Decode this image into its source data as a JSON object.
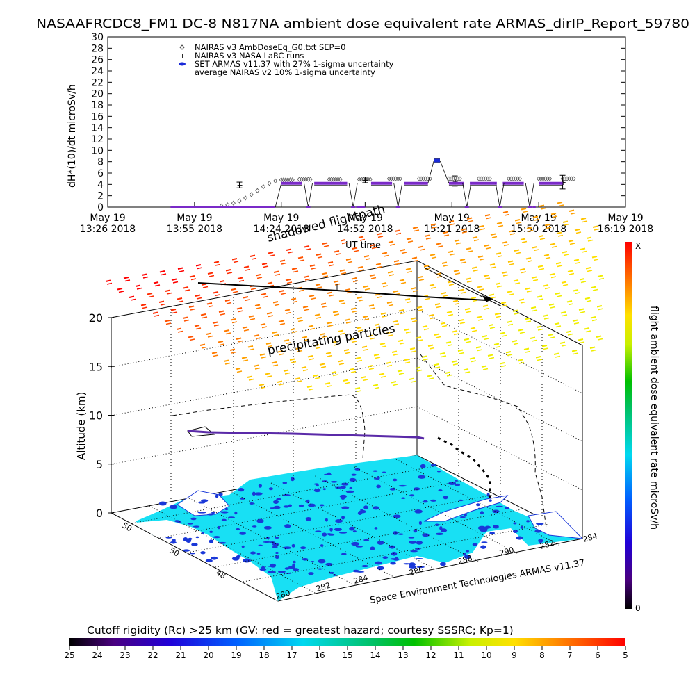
{
  "header": {
    "title": "NASAAFRCDC8_FM1 DC-8    N817NA ambient dose equivalent rate ARMAS_dirIP_Report_59780"
  },
  "chart_data": [
    {
      "type": "scatter",
      "ylabel": "dH*(10)/dt microSv/h",
      "xlabel": "UT time",
      "ylim": [
        0,
        30
      ],
      "y_ticks": [
        0,
        2,
        4,
        6,
        8,
        10,
        12,
        14,
        16,
        18,
        20,
        22,
        24,
        26,
        28,
        30
      ],
      "xlim": [
        "2018-05-19 13:26",
        "2018-05-19 16:19"
      ],
      "x_ticks": [
        {
          "time": "2018-05-19 13:26",
          "line1": "May 19",
          "line2": "13:26 2018"
        },
        {
          "time": "2018-05-19 13:55",
          "line1": "May 19",
          "line2": "13:55 2018"
        },
        {
          "time": "2018-05-19 14:24",
          "line1": "May 19",
          "line2": "14:24 2018"
        },
        {
          "time": "2018-05-19 14:52",
          "line1": "May 19",
          "line2": "14:52 2018"
        },
        {
          "time": "2018-05-19 15:21",
          "line1": "May 19",
          "line2": "15:21 2018"
        },
        {
          "time": "2018-05-19 15:50",
          "line1": "May 19",
          "line2": "15:50 2018"
        },
        {
          "time": "2018-05-19 16:19",
          "line1": "May 19",
          "line2": "16:19 2018"
        }
      ],
      "legend": [
        {
          "marker": "diamond",
          "label": "NAIRAS v3 AmbDoseEq_G0.txt SEP=0"
        },
        {
          "marker": "plus",
          "label": "NAIRAS v3 NASA LaRC runs"
        },
        {
          "marker": "dot",
          "color": "#1a2ad8",
          "label": "SET ARMAS v11.37 with 27% 1-sigma uncertainty"
        },
        {
          "marker": "none",
          "label": "average NAIRAS v2 10% 1-sigma uncertainty"
        }
      ],
      "series": [
        {
          "name": "NAIRAS v3 AmbDoseEq_G0.txt SEP=0",
          "marker": "diamond",
          "color": "#555555",
          "points": [
            [
              "2018-05-19 14:04",
              0.2
            ],
            [
              "2018-05-19 14:06",
              0.4
            ],
            [
              "2018-05-19 14:08",
              0.7
            ],
            [
              "2018-05-19 14:10",
              1.1
            ],
            [
              "2018-05-19 14:12",
              1.6
            ],
            [
              "2018-05-19 14:14",
              2.2
            ],
            [
              "2018-05-19 14:16",
              2.9
            ],
            [
              "2018-05-19 14:18",
              3.6
            ],
            [
              "2018-05-19 14:20",
              4.2
            ],
            [
              "2018-05-19 14:22",
              4.6
            ],
            [
              "2018-05-19 14:24",
              4.8
            ],
            [
              "2018-05-19 14:30",
              4.9
            ],
            [
              "2018-05-19 14:40",
              4.9
            ],
            [
              "2018-05-19 14:50",
              4.9
            ],
            [
              "2018-05-19 15:00",
              5.0
            ],
            [
              "2018-05-19 15:10",
              5.0
            ],
            [
              "2018-05-19 15:20",
              5.0
            ],
            [
              "2018-05-19 15:30",
              5.0
            ],
            [
              "2018-05-19 15:40",
              5.0
            ],
            [
              "2018-05-19 15:50",
              5.0
            ],
            [
              "2018-05-19 15:58",
              5.0
            ]
          ]
        },
        {
          "name": "NAIRAS v3 NASA LaRC runs",
          "marker": "plus",
          "color": "#000000",
          "points": [
            [
              "2018-05-19 14:10",
              3.9
            ],
            [
              "2018-05-19 14:52",
              4.8
            ],
            [
              "2018-05-19 15:22",
              4.6
            ],
            [
              "2018-05-19 15:58",
              4.4
            ]
          ],
          "error": [
            0.5,
            0.5,
            0.9,
            1.2
          ]
        },
        {
          "name": "SET ARMAS v11.37 with 27% 1-sigma uncertainty",
          "marker": "dot",
          "color": "#7a2ac8",
          "segments": [
            [
              [
                "2018-05-19 13:47",
                0
              ],
              [
                "2018-05-19 14:22",
                0
              ]
            ],
            [
              [
                "2018-05-19 14:24",
                4.2
              ],
              [
                "2018-05-19 14:31",
                4.2
              ]
            ],
            [
              [
                "2018-05-19 14:35",
                4.2
              ],
              [
                "2018-05-19 14:46",
                4.2
              ]
            ],
            [
              [
                "2018-05-19 14:49",
                0
              ],
              [
                "2018-05-19 14:52",
                0
              ]
            ],
            [
              [
                "2018-05-19 14:54",
                4.2
              ],
              [
                "2018-05-19 15:01",
                4.2
              ]
            ],
            [
              [
                "2018-05-19 15:05",
                4.2
              ],
              [
                "2018-05-19 15:13",
                4.2
              ]
            ],
            [
              [
                "2018-05-19 15:15",
                8.2
              ],
              [
                "2018-05-19 15:17",
                8.2
              ]
            ],
            [
              [
                "2018-05-19 15:20",
                4.2
              ],
              [
                "2018-05-19 15:25",
                4.2
              ]
            ],
            [
              [
                "2018-05-19 15:27",
                4.2
              ],
              [
                "2018-05-19 15:36",
                4.2
              ]
            ],
            [
              [
                "2018-05-19 15:38",
                4.2
              ],
              [
                "2018-05-19 15:45",
                4.2
              ]
            ],
            [
              [
                "2018-05-19 15:48",
                0
              ],
              [
                "2018-05-19 15:49",
                0
              ]
            ],
            [
              [
                "2018-05-19 15:50",
                4.2
              ],
              [
                "2018-05-19 15:58",
                4.2
              ]
            ]
          ],
          "dips_to_zero": [
            "2018-05-19 14:33",
            "2018-05-19 14:48",
            "2018-05-19 15:03",
            "2018-05-19 15:26",
            "2018-05-19 15:37",
            "2018-05-19 15:47"
          ]
        }
      ]
    },
    {
      "type": "3d-scatter",
      "zlabel": "Altitude (km)",
      "z_ticks": [
        0,
        5,
        10,
        15,
        20
      ],
      "lon_ticks": [
        "280",
        "282",
        "284",
        "286",
        "288",
        "290",
        "282",
        "284"
      ],
      "lat_ticks": [
        "50",
        "50",
        "48"
      ],
      "annotations": [
        "shadowed flightpath",
        "precipitating particles",
        "Space Environment Technologies ARMAS v11.37"
      ],
      "map_colors": {
        "ocean": "#ffffff",
        "land": "#18e0f4",
        "lakes": "#1a38d8"
      },
      "flight_altitude_km": 7.5
    }
  ],
  "colorbar_right": {
    "label": "flight ambient dose equivalent rate microSv/h",
    "max_label": "X",
    "min_label": "0"
  },
  "colorbar_bottom": {
    "title": "Cutoff rigidity (Rc) >25 km (GV: red = greatest hazard; courtesy SSSRC; Kp=1)",
    "ticks": [
      "25",
      "24",
      "23",
      "22",
      "21",
      "20",
      "19",
      "18",
      "17",
      "16",
      "15",
      "14",
      "13",
      "12",
      "11",
      "10",
      "9",
      "8",
      "7",
      "6",
      "5"
    ]
  },
  "colors": {
    "rainbow": [
      "#000000",
      "#4a0080",
      "#2000d8",
      "#0050ff",
      "#00b0ff",
      "#00e8e8",
      "#00d080",
      "#00c000",
      "#80e000",
      "#e8f000",
      "#ffc000",
      "#ff6000",
      "#ff0000"
    ]
  }
}
